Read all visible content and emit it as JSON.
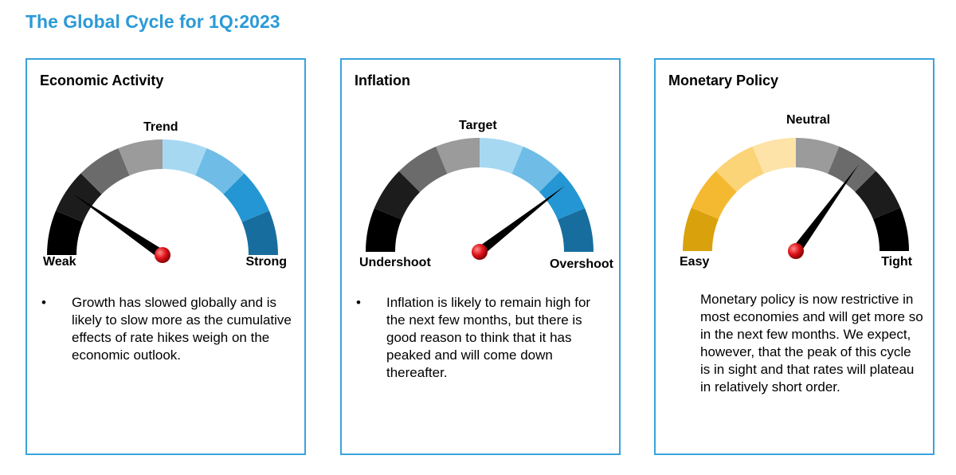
{
  "title": "The Global Cycle for 1Q:2023",
  "colors": {
    "accent": "#2b9ad6",
    "border": "#3aa3dc",
    "pivot": "#e0141b",
    "needle": "#000000"
  },
  "panels": [
    {
      "heading": "Economic Activity",
      "gauge": {
        "left_label": "Weak",
        "top_label": "Trend",
        "right_label": "Strong",
        "segment_colors": [
          "#000000",
          "#1c1c1c",
          "#6b6b6b",
          "#9b9b9b",
          "#a7d8f2",
          "#6fbde6",
          "#2596d4",
          "#176e9e"
        ],
        "needle_fraction": 0.19
      },
      "bullet": "•",
      "text": "Growth has slowed globally and is likely to slow more as the cumulative effects of rate hikes weigh on the economic outlook."
    },
    {
      "heading": "Inflation",
      "gauge": {
        "left_label": "Undershoot",
        "top_label": "Target",
        "right_label": "Overshoot",
        "segment_colors": [
          "#000000",
          "#1c1c1c",
          "#6b6b6b",
          "#9b9b9b",
          "#a7d8f2",
          "#6fbde6",
          "#2596d4",
          "#176e9e"
        ],
        "needle_fraction": 0.79
      },
      "bullet": "•",
      "text": "Inflation is likely to remain high for the next few months, but there is good reason to think that it has peaked and will come down thereafter."
    },
    {
      "heading": "Monetary Policy",
      "gauge": {
        "left_label": "Easy",
        "top_label": "Neutral",
        "right_label": "Tight",
        "segment_colors": [
          "#d9a20c",
          "#f4b930",
          "#fbd477",
          "#fde3a8",
          "#9b9b9b",
          "#6b6b6b",
          "#1c1c1c",
          "#000000"
        ],
        "needle_fraction": 0.7
      },
      "bullet": "",
      "text": "Monetary policy is now restrictive in most economies and will get more so in the next few months. We expect, however, that the peak of this cycle is in sight and that rates will plateau in relatively short order."
    }
  ]
}
